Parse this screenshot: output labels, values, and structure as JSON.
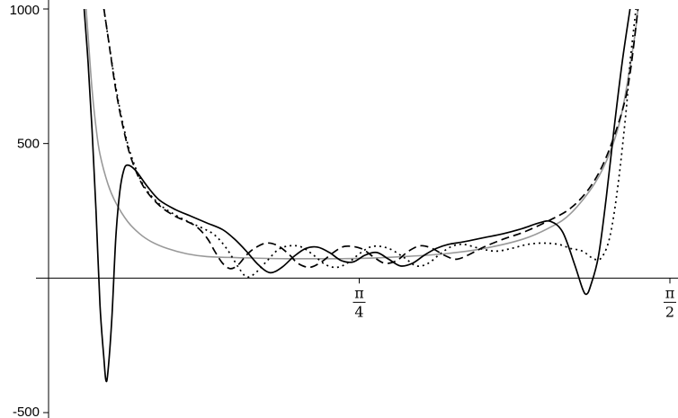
{
  "chart_data": {
    "type": "line",
    "title": "",
    "xlabel": "",
    "ylabel": "",
    "xlim": [
      0,
      1.5708
    ],
    "ylim": [
      -500,
      1000
    ],
    "x_ticks": [
      {
        "value": 0.785398,
        "num": "π",
        "den": "4"
      },
      {
        "value": 1.570796,
        "num": "π",
        "den": "2"
      }
    ],
    "y_ticks": [
      {
        "value": 1000,
        "label": "1000"
      },
      {
        "value": 500,
        "label": "500"
      },
      {
        "value": -500,
        "label": "-500"
      }
    ],
    "grid": false,
    "series": [
      {
        "color": "#999999",
        "dash": "",
        "points": [
          [
            0.095,
            1000
          ],
          [
            0.1,
            900
          ],
          [
            0.11,
            700
          ],
          [
            0.12,
            560
          ],
          [
            0.13,
            460
          ],
          [
            0.15,
            350
          ],
          [
            0.17,
            280
          ],
          [
            0.2,
            210
          ],
          [
            0.23,
            165
          ],
          [
            0.26,
            135
          ],
          [
            0.3,
            110
          ],
          [
            0.35,
            90
          ],
          [
            0.4,
            80
          ],
          [
            0.5,
            75
          ],
          [
            0.6,
            72
          ],
          [
            0.7,
            72
          ],
          [
            0.785,
            73
          ],
          [
            0.9,
            80
          ],
          [
            1.0,
            90
          ],
          [
            1.1,
            110
          ],
          [
            1.2,
            145
          ],
          [
            1.27,
            190
          ],
          [
            1.32,
            240
          ],
          [
            1.38,
            350
          ],
          [
            1.42,
            470
          ],
          [
            1.45,
            620
          ],
          [
            1.48,
            880
          ],
          [
            1.49,
            1000
          ]
        ]
      },
      {
        "color": "#000000",
        "dash": "9,5",
        "points": [
          [
            0.14,
            1000
          ],
          [
            0.15,
            900
          ],
          [
            0.17,
            700
          ],
          [
            0.19,
            550
          ],
          [
            0.21,
            440
          ],
          [
            0.24,
            340
          ],
          [
            0.28,
            270
          ],
          [
            0.32,
            230
          ],
          [
            0.37,
            195
          ],
          [
            0.4,
            150
          ],
          [
            0.42,
            100
          ],
          [
            0.44,
            55
          ],
          [
            0.46,
            35
          ],
          [
            0.48,
            50
          ],
          [
            0.5,
            85
          ],
          [
            0.52,
            110
          ],
          [
            0.55,
            130
          ],
          [
            0.58,
            120
          ],
          [
            0.61,
            85
          ],
          [
            0.63,
            55
          ],
          [
            0.66,
            40
          ],
          [
            0.69,
            60
          ],
          [
            0.72,
            95
          ],
          [
            0.75,
            118
          ],
          [
            0.79,
            110
          ],
          [
            0.82,
            80
          ],
          [
            0.85,
            55
          ],
          [
            0.88,
            65
          ],
          [
            0.91,
            100
          ],
          [
            0.94,
            120
          ],
          [
            0.97,
            110
          ],
          [
            1.0,
            85
          ],
          [
            1.03,
            70
          ],
          [
            1.06,
            85
          ],
          [
            1.1,
            115
          ],
          [
            1.15,
            145
          ],
          [
            1.2,
            170
          ],
          [
            1.26,
            210
          ],
          [
            1.32,
            260
          ],
          [
            1.37,
            340
          ],
          [
            1.41,
            450
          ],
          [
            1.45,
            620
          ],
          [
            1.47,
            760
          ],
          [
            1.49,
            1000
          ]
        ]
      },
      {
        "color": "#000000",
        "dash": "2,4",
        "points": [
          [
            0.14,
            1000
          ],
          [
            0.15,
            900
          ],
          [
            0.17,
            710
          ],
          [
            0.19,
            560
          ],
          [
            0.21,
            450
          ],
          [
            0.24,
            345
          ],
          [
            0.28,
            275
          ],
          [
            0.32,
            235
          ],
          [
            0.36,
            205
          ],
          [
            0.39,
            185
          ],
          [
            0.42,
            160
          ],
          [
            0.45,
            110
          ],
          [
            0.48,
            40
          ],
          [
            0.5,
            5
          ],
          [
            0.52,
            15
          ],
          [
            0.55,
            60
          ],
          [
            0.58,
            105
          ],
          [
            0.61,
            120
          ],
          [
            0.64,
            115
          ],
          [
            0.67,
            85
          ],
          [
            0.7,
            50
          ],
          [
            0.73,
            40
          ],
          [
            0.76,
            60
          ],
          [
            0.79,
            95
          ],
          [
            0.82,
            118
          ],
          [
            0.86,
            110
          ],
          [
            0.9,
            75
          ],
          [
            0.93,
            45
          ],
          [
            0.96,
            55
          ],
          [
            0.99,
            90
          ],
          [
            1.02,
            118
          ],
          [
            1.05,
            125
          ],
          [
            1.09,
            110
          ],
          [
            1.13,
            100
          ],
          [
            1.17,
            110
          ],
          [
            1.21,
            125
          ],
          [
            1.25,
            130
          ],
          [
            1.29,
            125
          ],
          [
            1.32,
            110
          ],
          [
            1.35,
            100
          ],
          [
            1.38,
            70
          ],
          [
            1.4,
            80
          ],
          [
            1.42,
            160
          ],
          [
            1.44,
            350
          ],
          [
            1.46,
            620
          ],
          [
            1.47,
            800
          ],
          [
            1.485,
            1000
          ]
        ]
      },
      {
        "color": "#000000",
        "dash": "",
        "points": [
          [
            0.09,
            1000
          ],
          [
            0.1,
            800
          ],
          [
            0.11,
            550
          ],
          [
            0.12,
            250
          ],
          [
            0.13,
            -100
          ],
          [
            0.14,
            -300
          ],
          [
            0.145,
            -380
          ],
          [
            0.15,
            -350
          ],
          [
            0.16,
            -150
          ],
          [
            0.17,
            150
          ],
          [
            0.18,
            320
          ],
          [
            0.19,
            400
          ],
          [
            0.2,
            420
          ],
          [
            0.22,
            400
          ],
          [
            0.25,
            340
          ],
          [
            0.28,
            290
          ],
          [
            0.32,
            255
          ],
          [
            0.36,
            230
          ],
          [
            0.4,
            205
          ],
          [
            0.44,
            180
          ],
          [
            0.47,
            145
          ],
          [
            0.5,
            100
          ],
          [
            0.53,
            50
          ],
          [
            0.56,
            20
          ],
          [
            0.59,
            40
          ],
          [
            0.62,
            80
          ],
          [
            0.65,
            110
          ],
          [
            0.68,
            115
          ],
          [
            0.71,
            95
          ],
          [
            0.74,
            65
          ],
          [
            0.77,
            60
          ],
          [
            0.8,
            85
          ],
          [
            0.83,
            95
          ],
          [
            0.86,
            70
          ],
          [
            0.89,
            45
          ],
          [
            0.92,
            55
          ],
          [
            0.95,
            85
          ],
          [
            0.98,
            110
          ],
          [
            1.01,
            125
          ],
          [
            1.05,
            135
          ],
          [
            1.1,
            150
          ],
          [
            1.15,
            165
          ],
          [
            1.2,
            185
          ],
          [
            1.24,
            205
          ],
          [
            1.27,
            210
          ],
          [
            1.3,
            170
          ],
          [
            1.33,
            50
          ],
          [
            1.35,
            -40
          ],
          [
            1.36,
            -60
          ],
          [
            1.37,
            -30
          ],
          [
            1.39,
            80
          ],
          [
            1.41,
            300
          ],
          [
            1.43,
            560
          ],
          [
            1.45,
            800
          ],
          [
            1.47,
            1000
          ]
        ]
      }
    ]
  }
}
